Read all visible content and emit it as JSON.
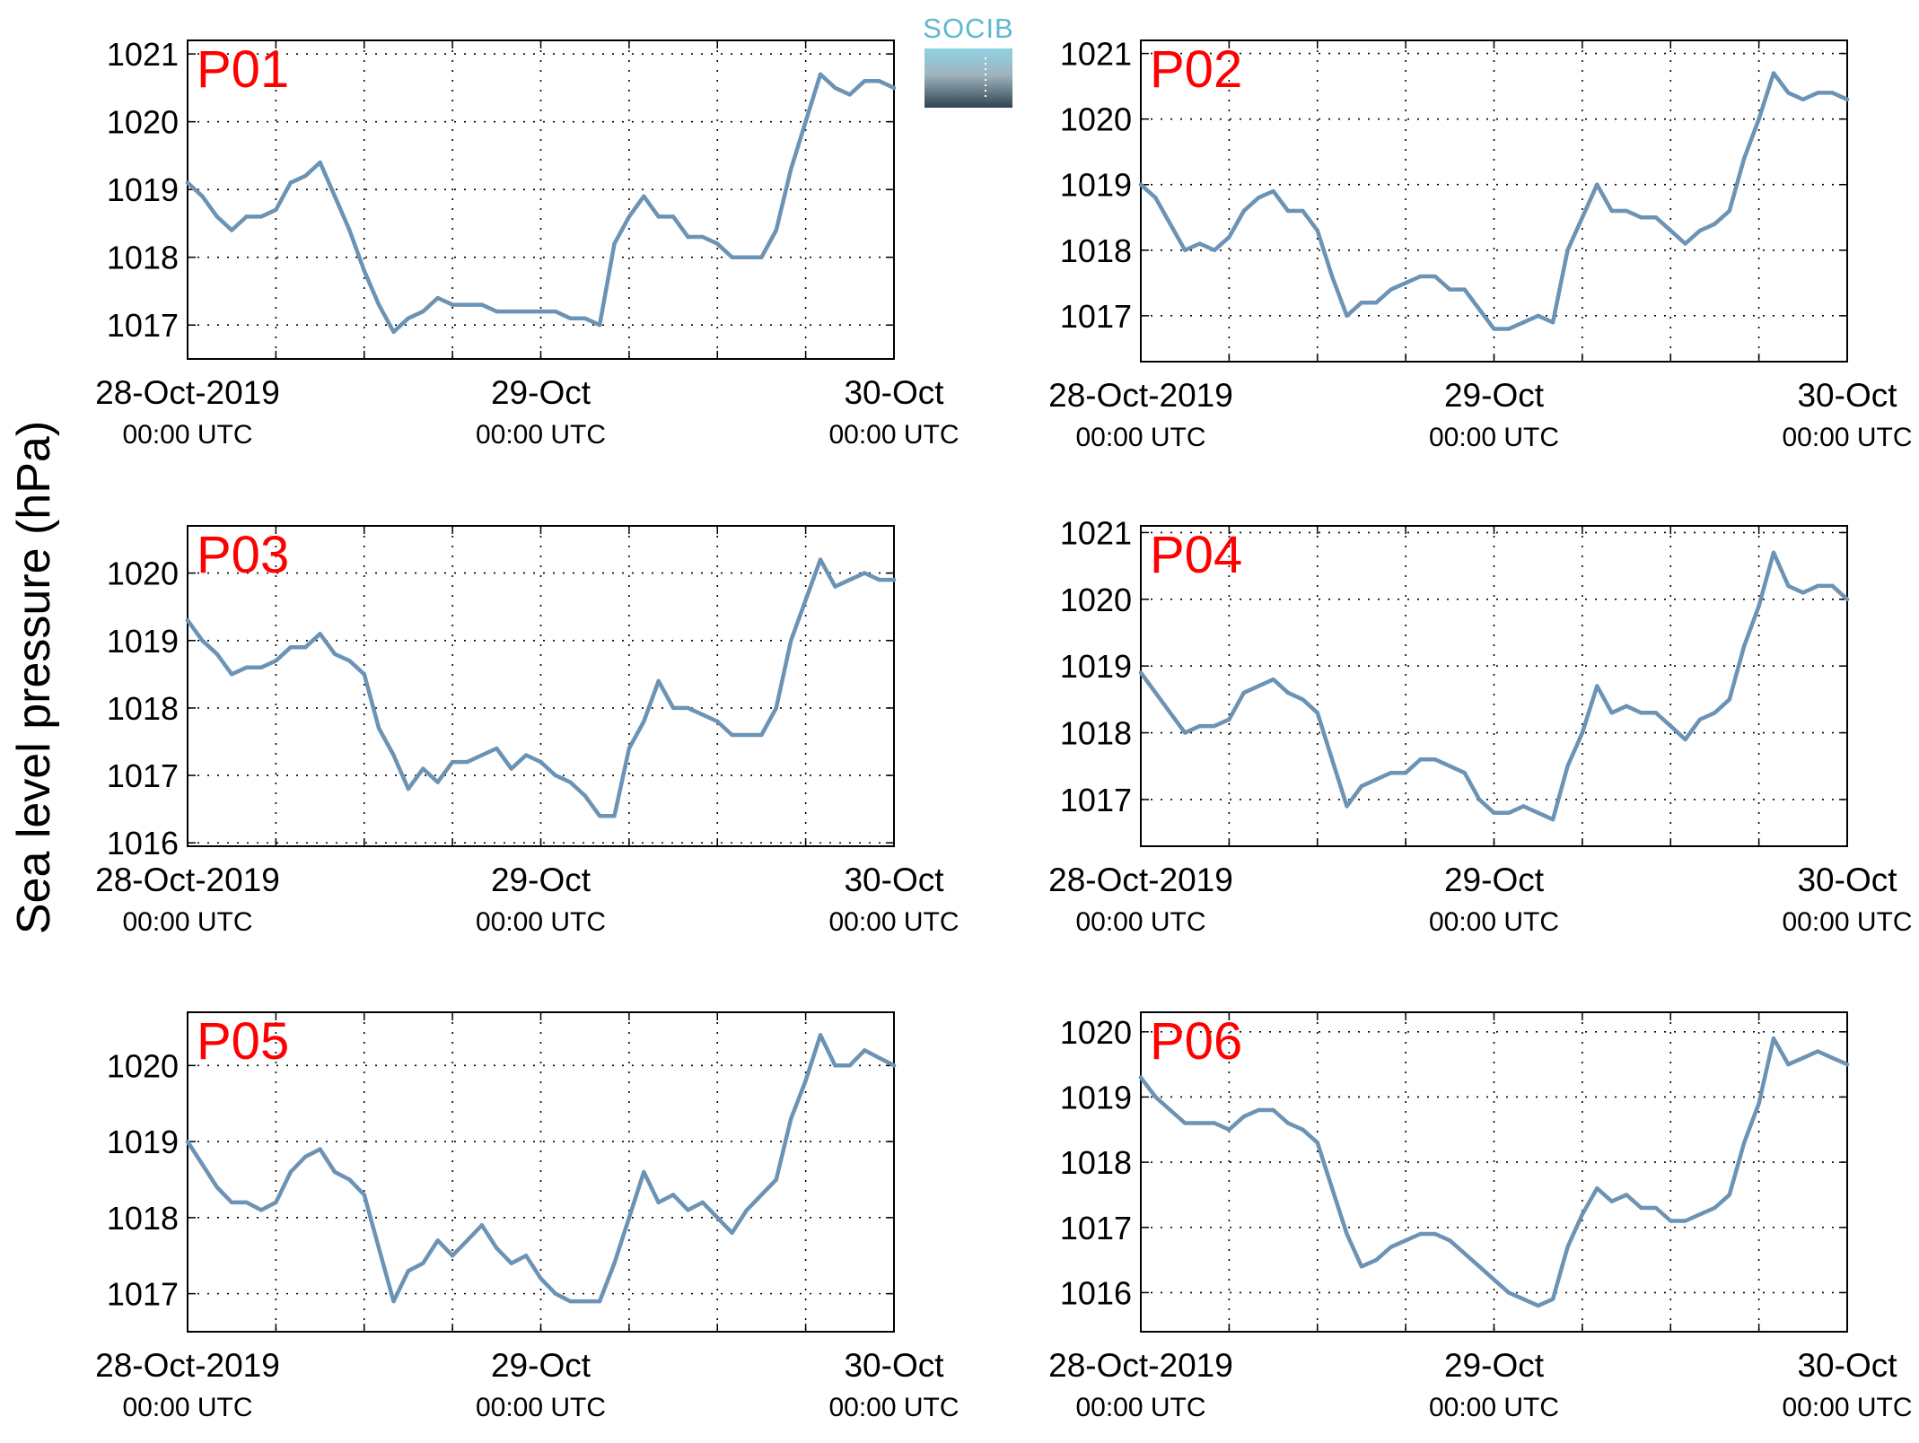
{
  "ylabel_common": "Sea level pressure (hPa)",
  "logo": {
    "text": "SOCIB",
    "color_top": "#5fb7cf",
    "color_bottom": "#2f4450"
  },
  "colors": {
    "line": "#6b93b5",
    "label": "#ff0000",
    "axis": "#000000",
    "grid": "#000000"
  },
  "x_ticks": [
    {
      "line1": "28-Oct-2019",
      "line2": "00:00 UTC"
    },
    {
      "line1": "29-Oct",
      "line2": "00:00 UTC"
    },
    {
      "line1": "30-Oct",
      "line2": "00:00 UTC"
    }
  ],
  "chart_data": [
    {
      "type": "line",
      "title": "P01",
      "xlim": [
        0,
        48
      ],
      "ylim": [
        1016.5,
        1021.2
      ],
      "yticks": [
        1017,
        1018,
        1019,
        1020,
        1021
      ],
      "grid": true,
      "xlabel": "",
      "ylabel": "",
      "series": [
        {
          "x": [
            0,
            1,
            2,
            3,
            4,
            5,
            6,
            7,
            8,
            9,
            10,
            11,
            12,
            13,
            14,
            15,
            16,
            17,
            18,
            19,
            20,
            21,
            22,
            23,
            24,
            25,
            26,
            27,
            28,
            29,
            30,
            31,
            32,
            33,
            34,
            35,
            36,
            37,
            38,
            39,
            40,
            41,
            42,
            43,
            44,
            45,
            46,
            47,
            48
          ],
          "values": [
            1019.1,
            1018.9,
            1018.6,
            1018.4,
            1018.6,
            1018.6,
            1018.7,
            1019.1,
            1019.2,
            1019.4,
            1018.9,
            1018.4,
            1017.8,
            1017.3,
            1016.9,
            1017.1,
            1017.2,
            1017.4,
            1017.3,
            1017.3,
            1017.3,
            1017.2,
            1017.2,
            1017.2,
            1017.2,
            1017.2,
            1017.1,
            1017.1,
            1017.0,
            1018.2,
            1018.6,
            1018.9,
            1018.6,
            1018.6,
            1018.3,
            1018.3,
            1018.2,
            1018.0,
            1018.0,
            1018.0,
            1018.4,
            1019.3,
            1020.0,
            1020.7,
            1020.5,
            1020.4,
            1020.6,
            1020.6,
            1020.5
          ]
        }
      ]
    },
    {
      "type": "line",
      "title": "P02",
      "xlim": [
        0,
        48
      ],
      "ylim": [
        1016.3,
        1021.2
      ],
      "yticks": [
        1017,
        1018,
        1019,
        1020,
        1021
      ],
      "grid": true,
      "xlabel": "",
      "ylabel": "",
      "series": [
        {
          "x": [
            0,
            1,
            2,
            3,
            4,
            5,
            6,
            7,
            8,
            9,
            10,
            11,
            12,
            13,
            14,
            15,
            16,
            17,
            18,
            19,
            20,
            21,
            22,
            23,
            24,
            25,
            26,
            27,
            28,
            29,
            30,
            31,
            32,
            33,
            34,
            35,
            36,
            37,
            38,
            39,
            40,
            41,
            42,
            43,
            44,
            45,
            46,
            47,
            48
          ],
          "values": [
            1019.0,
            1018.8,
            1018.4,
            1018.0,
            1018.1,
            1018.0,
            1018.2,
            1018.6,
            1018.8,
            1018.9,
            1018.6,
            1018.6,
            1018.3,
            1017.6,
            1017.0,
            1017.2,
            1017.2,
            1017.4,
            1017.5,
            1017.6,
            1017.6,
            1017.4,
            1017.4,
            1017.1,
            1016.8,
            1016.8,
            1016.9,
            1017.0,
            1016.9,
            1018.0,
            1018.5,
            1019.0,
            1018.6,
            1018.6,
            1018.5,
            1018.5,
            1018.3,
            1018.1,
            1018.3,
            1018.4,
            1018.6,
            1019.4,
            1020.0,
            1020.7,
            1020.4,
            1020.3,
            1020.4,
            1020.4,
            1020.3
          ]
        }
      ]
    },
    {
      "type": "line",
      "title": "P03",
      "xlim": [
        0,
        48
      ],
      "ylim": [
        1015.95,
        1020.7
      ],
      "yticks": [
        1016,
        1017,
        1018,
        1019,
        1020
      ],
      "grid": true,
      "xlabel": "",
      "ylabel": "",
      "series": [
        {
          "x": [
            0,
            1,
            2,
            3,
            4,
            5,
            6,
            7,
            8,
            9,
            10,
            11,
            12,
            13,
            14,
            15,
            16,
            17,
            18,
            19,
            20,
            21,
            22,
            23,
            24,
            25,
            26,
            27,
            28,
            29,
            30,
            31,
            32,
            33,
            34,
            35,
            36,
            37,
            38,
            39,
            40,
            41,
            42,
            43,
            44,
            45,
            46,
            47,
            48
          ],
          "values": [
            1019.3,
            1019.0,
            1018.8,
            1018.5,
            1018.6,
            1018.6,
            1018.7,
            1018.9,
            1018.9,
            1019.1,
            1018.8,
            1018.7,
            1018.5,
            1017.7,
            1017.3,
            1016.8,
            1017.1,
            1016.9,
            1017.2,
            1017.2,
            1017.3,
            1017.4,
            1017.1,
            1017.3,
            1017.2,
            1017.0,
            1016.9,
            1016.7,
            1016.4,
            1016.4,
            1017.4,
            1017.8,
            1018.4,
            1018.0,
            1018.0,
            1017.9,
            1017.8,
            1017.6,
            1017.6,
            1017.6,
            1018.0,
            1019.0,
            1019.6,
            1020.2,
            1019.8,
            1019.9,
            1020.0,
            1019.9,
            1019.9
          ]
        }
      ]
    },
    {
      "type": "line",
      "title": "P04",
      "xlim": [
        0,
        48
      ],
      "ylim": [
        1016.3,
        1021.1
      ],
      "yticks": [
        1017,
        1018,
        1019,
        1020,
        1021
      ],
      "grid": true,
      "xlabel": "",
      "ylabel": "",
      "series": [
        {
          "x": [
            0,
            1,
            2,
            3,
            4,
            5,
            6,
            7,
            8,
            9,
            10,
            11,
            12,
            13,
            14,
            15,
            16,
            17,
            18,
            19,
            20,
            21,
            22,
            23,
            24,
            25,
            26,
            27,
            28,
            29,
            30,
            31,
            32,
            33,
            34,
            35,
            36,
            37,
            38,
            39,
            40,
            41,
            42,
            43,
            44,
            45,
            46,
            47,
            48
          ],
          "values": [
            1018.9,
            1018.6,
            1018.3,
            1018.0,
            1018.1,
            1018.1,
            1018.2,
            1018.6,
            1018.7,
            1018.8,
            1018.6,
            1018.5,
            1018.3,
            1017.6,
            1016.9,
            1017.2,
            1017.3,
            1017.4,
            1017.4,
            1017.6,
            1017.6,
            1017.5,
            1017.4,
            1017.0,
            1016.8,
            1016.8,
            1016.9,
            1016.8,
            1016.7,
            1017.5,
            1018.0,
            1018.7,
            1018.3,
            1018.4,
            1018.3,
            1018.3,
            1018.1,
            1017.9,
            1018.2,
            1018.3,
            1018.5,
            1019.3,
            1019.9,
            1020.7,
            1020.2,
            1020.1,
            1020.2,
            1020.2,
            1020.0
          ]
        }
      ]
    },
    {
      "type": "line",
      "title": "P05",
      "xlim": [
        0,
        48
      ],
      "ylim": [
        1016.5,
        1020.7
      ],
      "yticks": [
        1017,
        1018,
        1019,
        1020
      ],
      "grid": true,
      "xlabel": "",
      "ylabel": "",
      "series": [
        {
          "x": [
            0,
            1,
            2,
            3,
            4,
            5,
            6,
            7,
            8,
            9,
            10,
            11,
            12,
            13,
            14,
            15,
            16,
            17,
            18,
            19,
            20,
            21,
            22,
            23,
            24,
            25,
            26,
            27,
            28,
            29,
            30,
            31,
            32,
            33,
            34,
            35,
            36,
            37,
            38,
            39,
            40,
            41,
            42,
            43,
            44,
            45,
            46,
            47,
            48
          ],
          "values": [
            1019.0,
            1018.7,
            1018.4,
            1018.2,
            1018.2,
            1018.1,
            1018.2,
            1018.6,
            1018.8,
            1018.9,
            1018.6,
            1018.5,
            1018.3,
            1017.6,
            1016.9,
            1017.3,
            1017.4,
            1017.7,
            1017.5,
            1017.7,
            1017.9,
            1017.6,
            1017.4,
            1017.5,
            1017.2,
            1017.0,
            1016.9,
            1016.9,
            1016.9,
            1017.4,
            1018.0,
            1018.6,
            1018.2,
            1018.3,
            1018.1,
            1018.2,
            1018.0,
            1017.8,
            1018.1,
            1018.3,
            1018.5,
            1019.3,
            1019.8,
            1020.4,
            1020.0,
            1020.0,
            1020.2,
            1020.1,
            1020.0
          ]
        }
      ]
    },
    {
      "type": "line",
      "title": "P06",
      "xlim": [
        0,
        48
      ],
      "ylim": [
        1015.4,
        1020.3
      ],
      "yticks": [
        1016,
        1017,
        1018,
        1019,
        1020
      ],
      "grid": true,
      "xlabel": "",
      "ylabel": "",
      "series": [
        {
          "x": [
            0,
            1,
            2,
            3,
            4,
            5,
            6,
            7,
            8,
            9,
            10,
            11,
            12,
            13,
            14,
            15,
            16,
            17,
            18,
            19,
            20,
            21,
            22,
            23,
            24,
            25,
            26,
            27,
            28,
            29,
            30,
            31,
            32,
            33,
            34,
            35,
            36,
            37,
            38,
            39,
            40,
            41,
            42,
            43,
            44,
            45,
            46,
            47,
            48
          ],
          "values": [
            1019.3,
            1019.0,
            1018.8,
            1018.6,
            1018.6,
            1018.6,
            1018.5,
            1018.7,
            1018.8,
            1018.8,
            1018.6,
            1018.5,
            1018.3,
            1017.6,
            1016.9,
            1016.4,
            1016.5,
            1016.7,
            1016.8,
            1016.9,
            1016.9,
            1016.8,
            1016.6,
            1016.4,
            1016.2,
            1016.0,
            1015.9,
            1015.8,
            1015.9,
            1016.7,
            1017.2,
            1017.6,
            1017.4,
            1017.5,
            1017.3,
            1017.3,
            1017.1,
            1017.1,
            1017.2,
            1017.3,
            1017.5,
            1018.3,
            1018.9,
            1019.9,
            1019.5,
            1019.6,
            1019.7,
            1019.6,
            1019.5
          ]
        }
      ]
    }
  ]
}
